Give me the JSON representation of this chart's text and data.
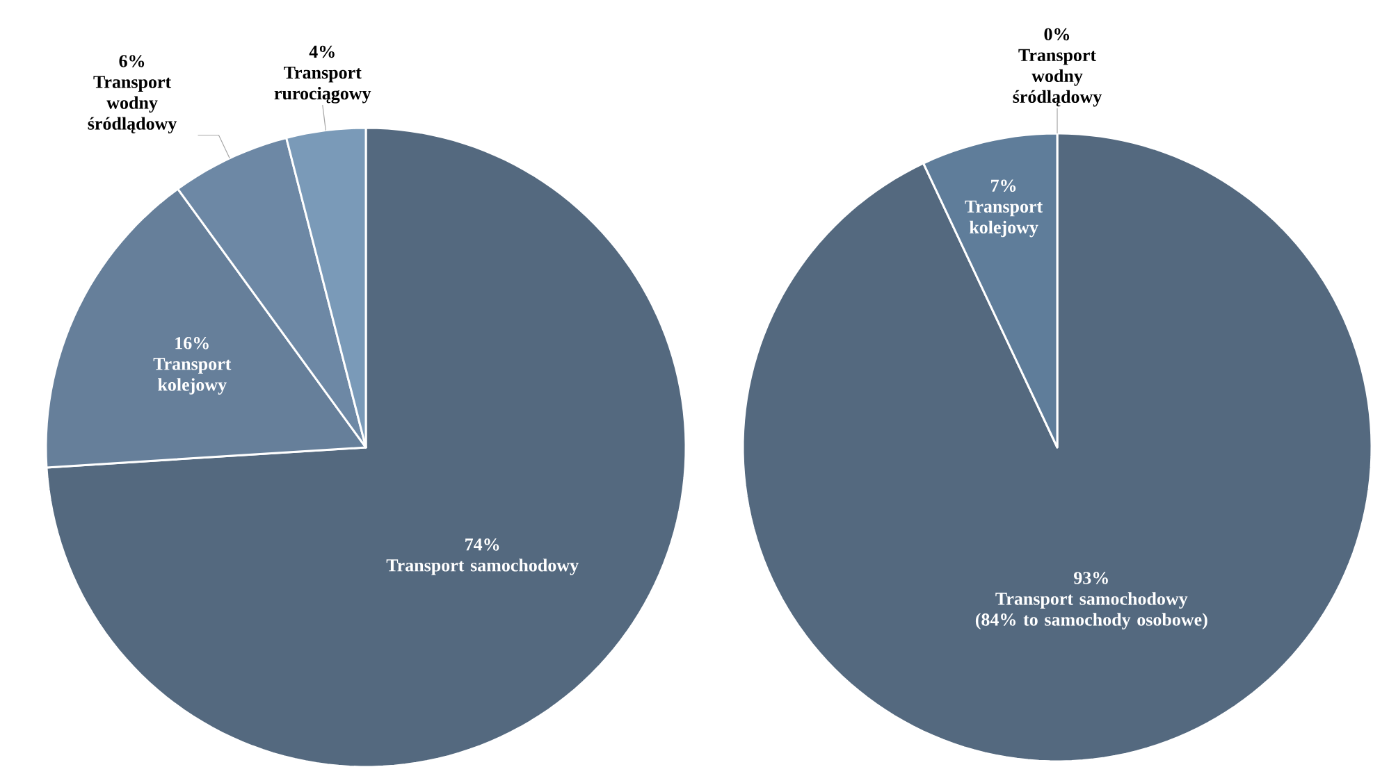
{
  "chart_data": [
    {
      "type": "pie",
      "categories": [
        "Transport samochodowy",
        "Transport kolejowy",
        "Transport wodny śródlądowy",
        "Transport rurociągowy"
      ],
      "values": [
        74,
        16,
        6,
        4
      ],
      "colors": [
        "#54697f",
        "#667f9a",
        "#6d88a5",
        "#7a9ab8"
      ],
      "value_labels": [
        "74%",
        "16%",
        "6%",
        "4%"
      ]
    },
    {
      "type": "pie",
      "categories": [
        "Transport samochodowy (84% to samochody osobowe)",
        "Transport kolejowy",
        "Transport wodny śródlądowy"
      ],
      "values": [
        93,
        7,
        0
      ],
      "colors": [
        "#54697f",
        "#5f7d9a",
        "#6d88a5"
      ],
      "value_labels": [
        "93%",
        "7%",
        "0%"
      ]
    }
  ]
}
